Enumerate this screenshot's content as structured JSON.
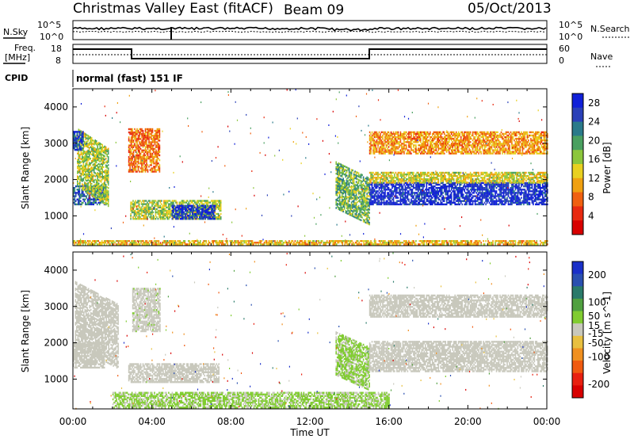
{
  "header": {
    "station": "Christmas Valley East (fitACF)",
    "beam": "Beam 09",
    "date": "05/Oct/2013"
  },
  "top_panels": {
    "nsky_label": "N.Sky",
    "nsearch_label": "N.Search",
    "freq_label_line1": "Freq.",
    "freq_label_line2": "[MHz]",
    "nave_label": "Nave",
    "cpid_label": "CPID",
    "cpid_value": "normal (fast) 151 IF",
    "noise_left_ticks": [
      "10^5",
      "10^0"
    ],
    "noise_right_ticks": [
      "10^5",
      "10^0"
    ],
    "freq_left_ticks": [
      "18",
      "8"
    ],
    "freq_right_ticks": [
      "60",
      "0"
    ]
  },
  "chart_data": [
    {
      "type": "heatmap",
      "name": "power-panel",
      "xlabel": "",
      "ylabel": "Slant Range [km]",
      "x_range_hours": [
        0,
        24
      ],
      "ylim": [
        180,
        4500
      ],
      "yticks": [
        1000,
        2000,
        3000,
        4000
      ],
      "colorbar": {
        "label": "Power [dB]",
        "ticks": [
          4,
          8,
          12,
          16,
          20,
          24,
          28
        ],
        "colors": [
          "#1020d8",
          "#2a40b8",
          "#2a7a8a",
          "#4aa060",
          "#8cc63c",
          "#e8d020",
          "#f0a010",
          "#f06010",
          "#e82a10",
          "#d80000"
        ],
        "range": [
          0,
          30
        ]
      },
      "regions": [
        {
          "t": [
            0.0,
            1.6
          ],
          "r": [
            1300,
            1800
          ],
          "level": 24
        },
        {
          "t": [
            0.2,
            1.8
          ],
          "r": [
            1800,
            3400
          ],
          "level": 16,
          "slope": true
        },
        {
          "t": [
            0.0,
            0.5
          ],
          "r": [
            2800,
            3300
          ],
          "level": 26
        },
        {
          "t": [
            2.9,
            7.5
          ],
          "r": [
            900,
            1400
          ],
          "level": 16
        },
        {
          "t": [
            5.0,
            7.2
          ],
          "r": [
            900,
            1300
          ],
          "level": 27
        },
        {
          "t": [
            2.8,
            4.4
          ],
          "r": [
            2200,
            3400
          ],
          "level": 8
        },
        {
          "t": [
            13.3,
            15.0
          ],
          "r": [
            1200,
            2500
          ],
          "level": 18,
          "slope": true
        },
        {
          "t": [
            15.0,
            24.0
          ],
          "r": [
            1300,
            1900
          ],
          "level": 28
        },
        {
          "t": [
            15.0,
            24.0
          ],
          "r": [
            1900,
            2200
          ],
          "level": 14
        },
        {
          "t": [
            15.0,
            24.0
          ],
          "r": [
            2700,
            3300
          ],
          "level": 10
        },
        {
          "t": [
            0.0,
            24.0
          ],
          "r": [
            200,
            330
          ],
          "level": 12
        }
      ]
    },
    {
      "type": "heatmap",
      "name": "velocity-panel",
      "xlabel": "Time UT",
      "ylabel": "Slant Range [km]",
      "x_range_hours": [
        0,
        24
      ],
      "xticks": [
        "00:00",
        "04:00",
        "08:00",
        "12:00",
        "16:00",
        "20:00",
        "00:00"
      ],
      "ylim": [
        180,
        4500
      ],
      "yticks": [
        1000,
        2000,
        3000,
        4000
      ],
      "colorbar": {
        "label": "Velocity [m s^-1]",
        "ticks": [
          200,
          100,
          50,
          15,
          -15,
          -50,
          -100,
          -200
        ],
        "colors": [
          "#1a30c8",
          "#2a50b0",
          "#2a7a6a",
          "#50a040",
          "#80cc30",
          "#c8c8bc",
          "#e8c040",
          "#f09020",
          "#f05a10",
          "#e82010",
          "#d80000"
        ],
        "range": [
          -250,
          250
        ]
      },
      "regions": [
        {
          "t": [
            0.0,
            1.6
          ],
          "r": [
            1300,
            2000
          ],
          "level": 0
        },
        {
          "t": [
            0.1,
            2.3
          ],
          "r": [
            1900,
            3700
          ],
          "level": 0,
          "slope": true
        },
        {
          "t": [
            2.8,
            7.4
          ],
          "r": [
            900,
            1400
          ],
          "level": 0
        },
        {
          "t": [
            3.0,
            4.4
          ],
          "r": [
            2300,
            3500
          ],
          "level": 5
        },
        {
          "t": [
            13.3,
            15.0
          ],
          "r": [
            1100,
            2300
          ],
          "level": 30,
          "slope": true
        },
        {
          "t": [
            15.0,
            24.0
          ],
          "r": [
            1200,
            2050
          ],
          "level": 0
        },
        {
          "t": [
            15.0,
            24.0
          ],
          "r": [
            2700,
            3300
          ],
          "level": 0
        },
        {
          "t": [
            2.0,
            16.0
          ],
          "r": [
            200,
            650
          ],
          "level": 30
        }
      ]
    }
  ]
}
